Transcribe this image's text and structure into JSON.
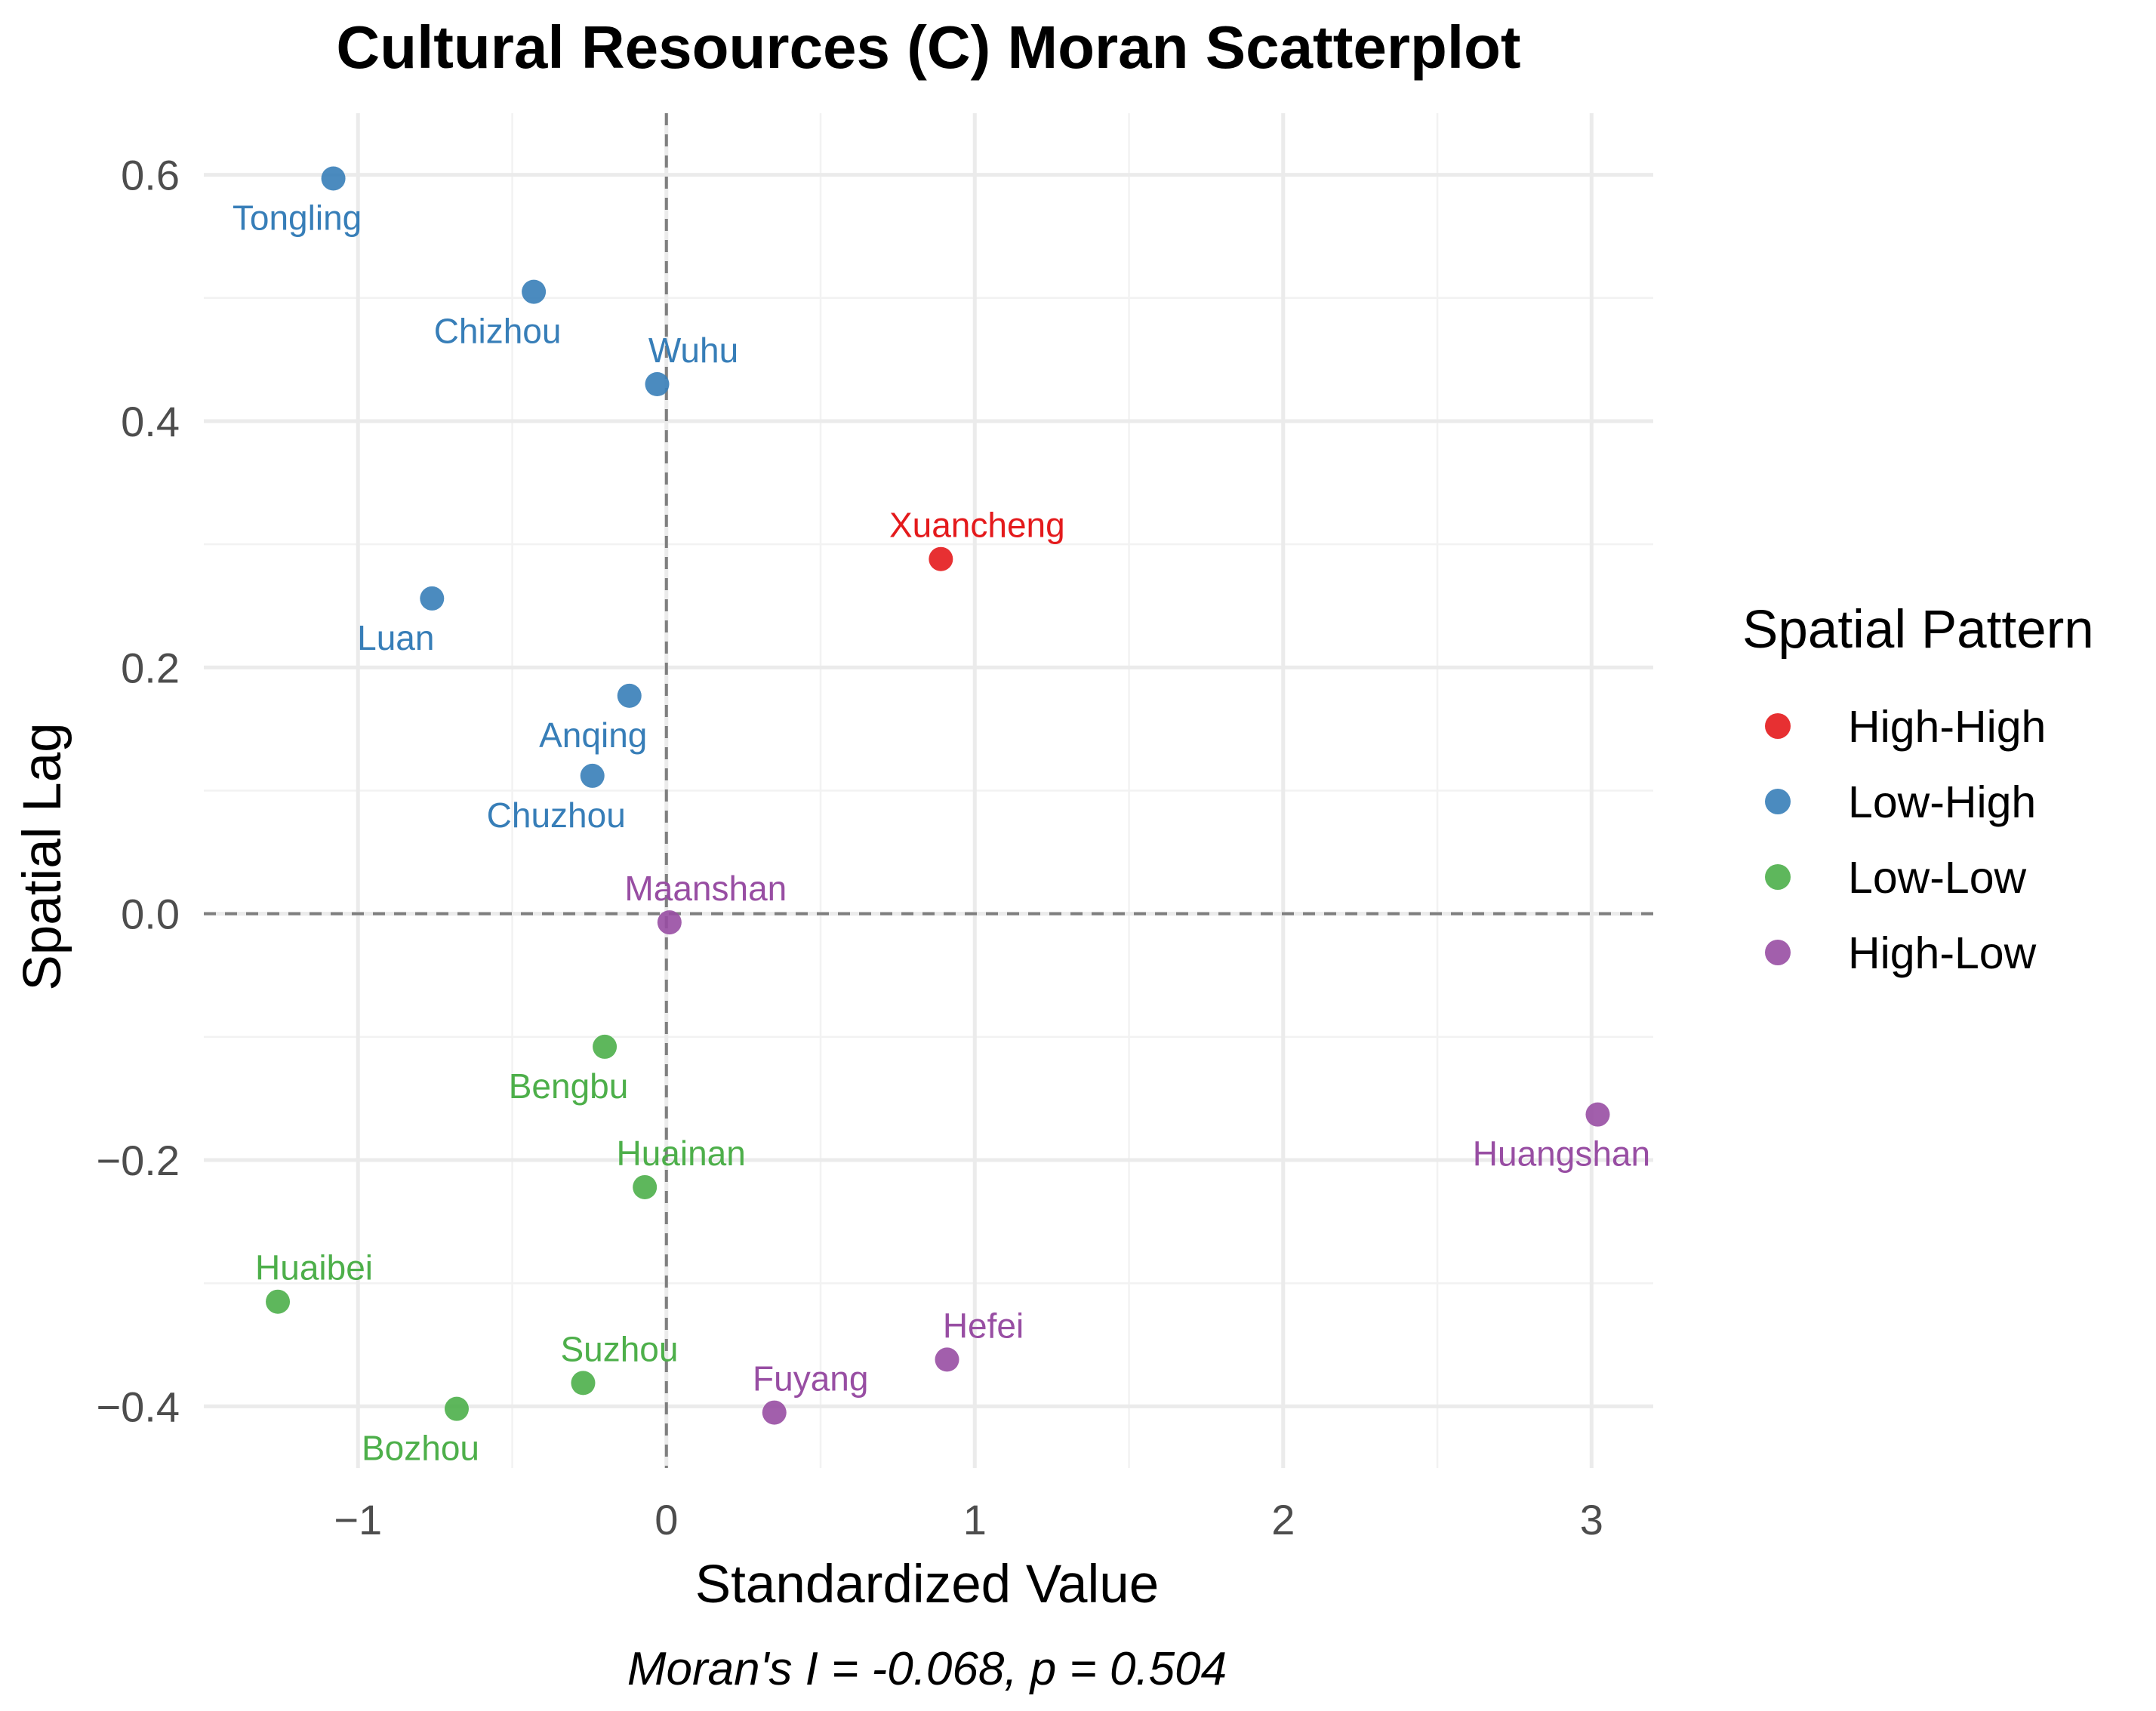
{
  "chart_data": {
    "type": "scatter",
    "title": "Cultural Resources (C) Moran Scatterplot",
    "xlabel": "Standardized Value",
    "ylabel": "Spatial Lag",
    "caption": "Moran's I = -0.068, p = 0.504",
    "xlim": [
      -1.5,
      3.2
    ],
    "ylim": [
      -0.45,
      0.65
    ],
    "x_ticks": [
      -1,
      0,
      1,
      2,
      3
    ],
    "x_tick_labels": [
      "−1",
      "0",
      "1",
      "2",
      "3"
    ],
    "y_ticks": [
      -0.4,
      -0.2,
      0.0,
      0.2,
      0.4,
      0.6
    ],
    "y_tick_labels": [
      "−0.4",
      "−0.2",
      "0.0",
      "0.2",
      "0.4",
      "0.6"
    ],
    "grid": true,
    "reference_lines": {
      "x": 0,
      "y": 0,
      "style": "dashed"
    },
    "legend": {
      "title": "Spatial Pattern",
      "placement": "right",
      "entries": [
        {
          "name": "High-High",
          "color": "#e41a1c"
        },
        {
          "name": "Low-High",
          "color": "#377eb8"
        },
        {
          "name": "Low-Low",
          "color": "#4daf4a"
        },
        {
          "name": "High-Low",
          "color": "#984ea3"
        }
      ]
    },
    "points": [
      {
        "label": "Tongling",
        "x": -1.08,
        "y": 0.597,
        "pattern": "Low-High",
        "label_pos": "below"
      },
      {
        "label": "Chizhou",
        "x": -0.43,
        "y": 0.505,
        "pattern": "Low-High",
        "label_pos": "below"
      },
      {
        "label": "Wuhu",
        "x": -0.03,
        "y": 0.43,
        "pattern": "Low-High",
        "label_pos": "above"
      },
      {
        "label": "Xuancheng",
        "x": 0.89,
        "y": 0.288,
        "pattern": "High-High",
        "label_pos": "above"
      },
      {
        "label": "Luan",
        "x": -0.76,
        "y": 0.256,
        "pattern": "Low-High",
        "label_pos": "below"
      },
      {
        "label": "Anqing",
        "x": -0.12,
        "y": 0.177,
        "pattern": "Low-High",
        "label_pos": "below"
      },
      {
        "label": "Chuzhou",
        "x": -0.24,
        "y": 0.112,
        "pattern": "Low-High",
        "label_pos": "below"
      },
      {
        "label": "Maanshan",
        "x": 0.01,
        "y": -0.007,
        "pattern": "High-Low",
        "label_pos": "above"
      },
      {
        "label": "Bengbu",
        "x": -0.2,
        "y": -0.108,
        "pattern": "Low-Low",
        "label_pos": "below"
      },
      {
        "label": "Huangshan",
        "x": 3.02,
        "y": -0.163,
        "pattern": "High-Low",
        "label_pos": "below"
      },
      {
        "label": "Huainan",
        "x": -0.07,
        "y": -0.222,
        "pattern": "Low-Low",
        "label_pos": "above"
      },
      {
        "label": "Huaibei",
        "x": -1.26,
        "y": -0.315,
        "pattern": "Low-Low",
        "label_pos": "above"
      },
      {
        "label": "Hefei",
        "x": 0.91,
        "y": -0.362,
        "pattern": "High-Low",
        "label_pos": "above"
      },
      {
        "label": "Suzhou",
        "x": -0.27,
        "y": -0.381,
        "pattern": "Low-Low",
        "label_pos": "above"
      },
      {
        "label": "Fuyang",
        "x": 0.35,
        "y": -0.405,
        "pattern": "High-Low",
        "label_pos": "above"
      },
      {
        "label": "Bozhou",
        "x": -0.68,
        "y": -0.402,
        "pattern": "Low-Low",
        "label_pos": "below"
      }
    ]
  }
}
